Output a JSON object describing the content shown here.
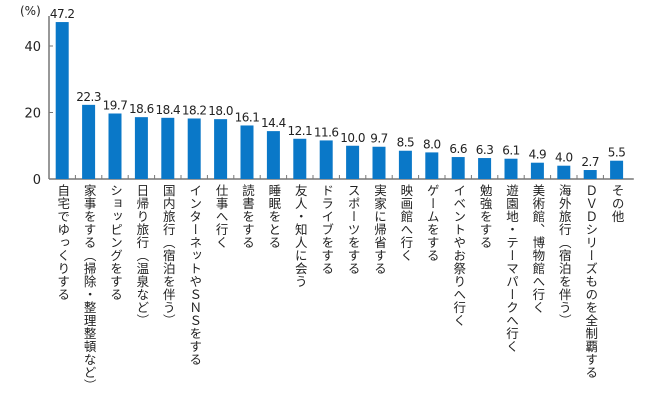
{
  "chart_data": {
    "type": "bar",
    "unit_label": "(%)",
    "ylim": [
      0,
      50
    ],
    "yticks": [
      "0",
      "20",
      "40"
    ],
    "bar_color": "#0a78c8",
    "categories": [
      "自宅でゆっくりする",
      "家事をする（掃除・整理整頓など）",
      "ショッピングをする",
      "日帰り旅行（温泉など）",
      "国内旅行（宿泊を伴う）",
      "インターネットやＳＮＳをする",
      "仕事へ行く",
      "読書をする",
      "睡眠をとる",
      "友人・知人に会う",
      "ドライブをする",
      "スポーツをする",
      "実家に帰省する",
      "映画館へ行く",
      "ゲームをする",
      "イベントやお祭りへ行く",
      "勉強をする",
      "遊園地・テーマパークへ行く",
      "美術館、博物館へ行く",
      "海外旅行（宿泊を伴う）",
      "ＤＶＤシリーズものを全制覇する",
      "その他"
    ],
    "values": [
      47.2,
      22.3,
      19.7,
      18.6,
      18.4,
      18.2,
      18.0,
      16.1,
      14.4,
      12.1,
      11.6,
      10.0,
      9.7,
      8.5,
      8.0,
      6.6,
      6.3,
      6.1,
      4.9,
      4.0,
      2.7,
      5.5
    ],
    "value_labels": [
      "47.2",
      "22.3",
      "19.7",
      "18.6",
      "18.4",
      "18.2",
      "18.0",
      "16.1",
      "14.4",
      "12.1",
      "11.6",
      "10.0",
      "9.7",
      "8.5",
      "8.0",
      "6.6",
      "6.3",
      "6.1",
      "4.9",
      "4.0",
      "2.7",
      "5.5"
    ]
  }
}
